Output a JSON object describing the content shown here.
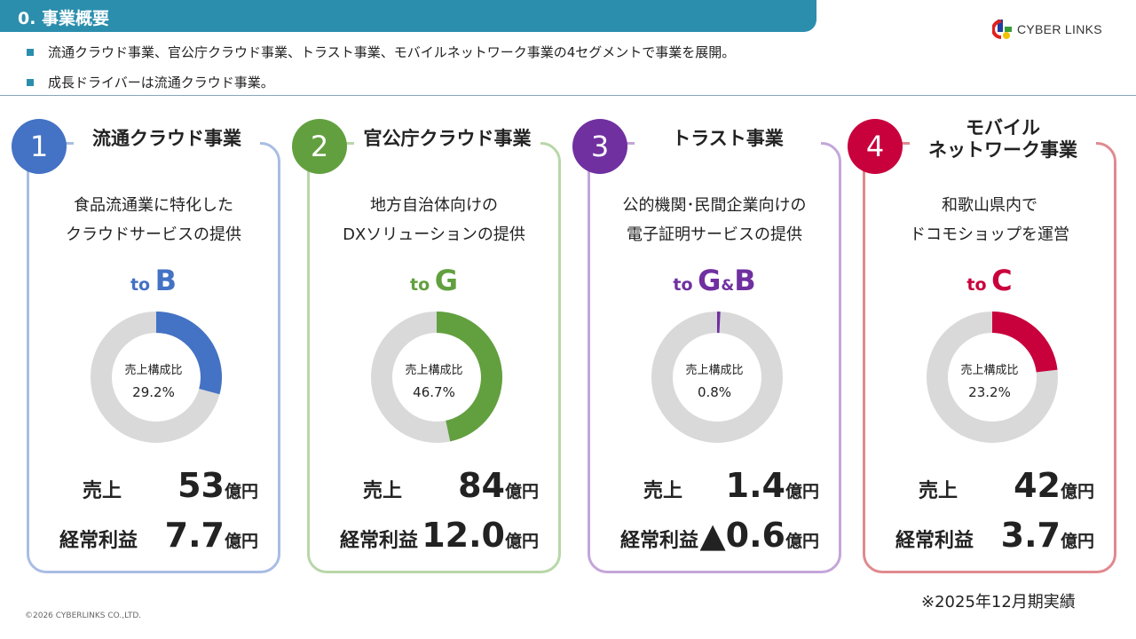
{
  "header": {
    "title": "0. 事業概要"
  },
  "logo": {
    "text": "CYBER LINKS"
  },
  "bullets": [
    "流通クラウド事業、官公庁クラウド事業、トラスト事業、モバイルネットワーク事業の4セグメントで事業を展開。",
    "成長ドライバーは流通クラウド事業。"
  ],
  "segments": [
    {
      "number": "1",
      "title": "流通クラウド事業",
      "desc1": "食品流通業に特化した",
      "desc2": "クラウドサービスの提供",
      "to_prefix": "to",
      "to_target": "B",
      "to_amp": "",
      "to_target2": "",
      "color": "#4472c4",
      "border": "#a9bde3",
      "share_label": "売上構成比",
      "share": "29.2%",
      "share_value": 29.2,
      "sales_label": "売上",
      "sales": "53",
      "profit_label": "経常利益",
      "profit": "7.7",
      "unit": "億円"
    },
    {
      "number": "2",
      "title": "官公庁クラウド事業",
      "desc1": "地方自治体向けの",
      "desc2": "DXソリューションの提供",
      "to_prefix": "to",
      "to_target": "G",
      "to_amp": "",
      "to_target2": "",
      "color": "#62a03f",
      "border": "#b9d7a8",
      "share_label": "売上構成比",
      "share": "46.7%",
      "share_value": 46.7,
      "sales_label": "売上",
      "sales": "84",
      "profit_label": "経常利益",
      "profit": "12.0",
      "unit": "億円"
    },
    {
      "number": "3",
      "title": "トラスト事業",
      "desc1": "公的機関･民間企業向けの",
      "desc2": "電子証明サービスの提供",
      "to_prefix": "to",
      "to_target": "G",
      "to_amp": "&",
      "to_target2": "B",
      "color": "#7030a0",
      "border": "#c4a6d9",
      "share_label": "売上構成比",
      "share": "0.8%",
      "share_value": 0.8,
      "sales_label": "売上",
      "sales": "1.4",
      "profit_label": "経常利益",
      "profit": "▲0.6",
      "unit": "億円"
    },
    {
      "number": "4",
      "title": "モバイル\nネットワーク事業",
      "desc1": "和歌山県内で",
      "desc2": "ドコモショップを運営",
      "to_prefix": "to",
      "to_target": "C",
      "to_amp": "",
      "to_target2": "",
      "color": "#c8003c",
      "border": "#e08a8f",
      "share_label": "売上構成比",
      "share": "23.2%",
      "share_value": 23.2,
      "sales_label": "売上",
      "sales": "42",
      "profit_label": "経常利益",
      "profit": "3.7",
      "unit": "億円"
    }
  ],
  "donut_rest_color": "#d9d9d9",
  "note": "※2025年12月期実績",
  "copyright": "©2026 CYBERLINKS CO.,LTD."
}
